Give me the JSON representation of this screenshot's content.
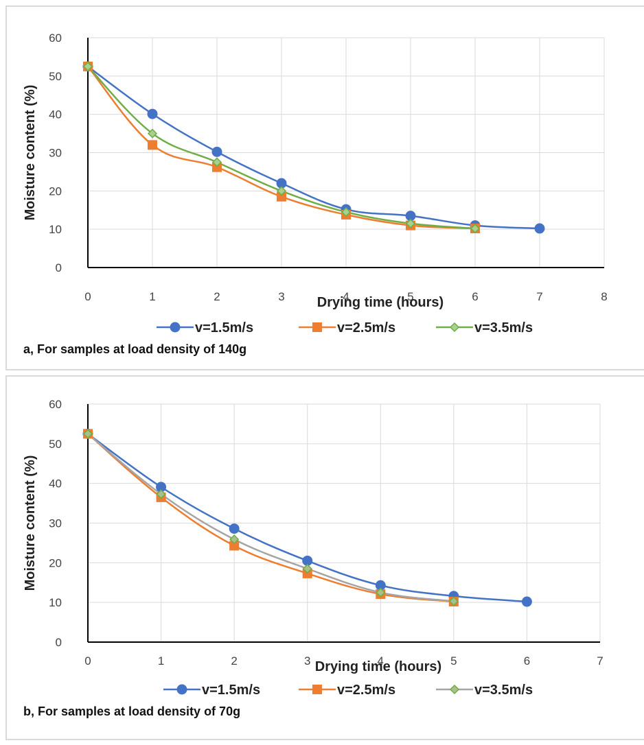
{
  "chart_data": [
    {
      "type": "line",
      "caption": "a, For samples at load density of 140g",
      "xlabel": "Drying time (hours)",
      "ylabel": "Moisture content (%)",
      "xlim": [
        0,
        8
      ],
      "ylim": [
        0,
        60
      ],
      "xticks": [
        "0",
        "1",
        "2",
        "3",
        "4",
        "5",
        "6",
        "7",
        "8"
      ],
      "yticks": [
        "0",
        "10",
        "20",
        "30",
        "40",
        "50",
        "60"
      ],
      "grid": "vertical and horizontal",
      "legend_position": "bottom",
      "series": [
        {
          "name": "v=1.5m/s",
          "color": "#4472c4",
          "marker": "circle",
          "x": [
            0,
            1,
            2,
            3,
            4,
            5,
            6,
            7
          ],
          "values": [
            52.5,
            40.1,
            30.2,
            22.0,
            15.2,
            13.5,
            11.0,
            10.2
          ]
        },
        {
          "name": "v=2.5m/s",
          "color": "#ed7d31",
          "marker": "square",
          "x": [
            0,
            1,
            2,
            3,
            4,
            5,
            6
          ],
          "values": [
            52.5,
            32.0,
            26.2,
            18.5,
            13.8,
            11.0,
            10.2
          ]
        },
        {
          "name": "v=3.5m/s",
          "color": "#70ad47",
          "marker": "diamond",
          "x": [
            0,
            1,
            2,
            3,
            4,
            5,
            6
          ],
          "values": [
            52.5,
            35.0,
            27.5,
            20.0,
            14.5,
            11.5,
            10.2
          ]
        }
      ]
    },
    {
      "type": "line",
      "caption": "b, For samples at load density of 70g",
      "xlabel": "Drying time (hours)",
      "ylabel": "Moisture content (%)",
      "xlim": [
        0,
        7
      ],
      "ylim": [
        0,
        60
      ],
      "xticks": [
        "0",
        "1",
        "2",
        "3",
        "4",
        "5",
        "6",
        "7"
      ],
      "yticks": [
        "0",
        "10",
        "20",
        "30",
        "40",
        "50",
        "60"
      ],
      "grid": "vertical and horizontal",
      "legend_position": "bottom",
      "series": [
        {
          "name": "v=1.5m/s",
          "color": "#4472c4",
          "marker": "circle",
          "x": [
            0,
            1,
            2,
            3,
            4,
            5,
            6
          ],
          "values": [
            52.5,
            39.1,
            28.6,
            20.5,
            14.3,
            11.6,
            10.2
          ]
        },
        {
          "name": "v=2.5m/s",
          "color": "#ed7d31",
          "marker": "square",
          "x": [
            0,
            1,
            2,
            3,
            4,
            5
          ],
          "values": [
            52.5,
            36.5,
            24.3,
            17.3,
            12.1,
            10.2
          ]
        },
        {
          "name": "v=3.5m/s",
          "color": "#a5a5a5",
          "marker": "diamond",
          "marker_fill": "#a9c08a",
          "marker_stroke": "#70ad47",
          "x": [
            0,
            1,
            2,
            3,
            4,
            5
          ],
          "values": [
            52.5,
            37.3,
            25.9,
            18.5,
            12.5,
            10.3
          ]
        }
      ]
    }
  ]
}
